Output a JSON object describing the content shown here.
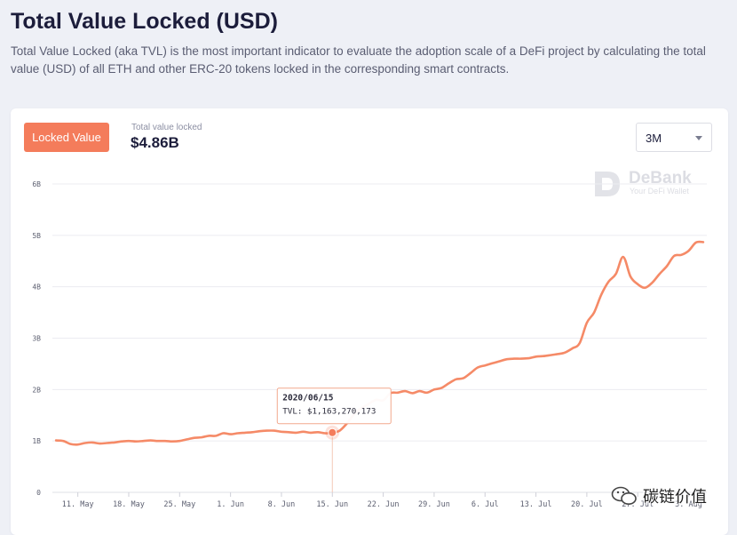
{
  "header": {
    "title": "Total Value Locked (USD)",
    "description": "Total Value Locked (aka TVL) is the most important indicator to evaluate the adoption scale of a DeFi project by calculating the total value (USD) of all ETH and other ERC-20 tokens locked in the corresponding smart contracts."
  },
  "toolbar": {
    "locked_button_label": "Locked Value",
    "tvl_label": "Total value locked",
    "tvl_value": "$4.86B",
    "period_selected": "3M"
  },
  "watermark": {
    "brand": "DeBank",
    "tagline": "Your DeFi Wallet"
  },
  "overlay": {
    "text": "碳链价值"
  },
  "colors": {
    "accent": "#f47c5b",
    "line": "#f58a67",
    "grid": "#ececf1",
    "axis_text": "#5c5f70"
  },
  "chart_data": {
    "type": "line",
    "title": "",
    "xlabel": "",
    "ylabel": "",
    "ylim": [
      0,
      6
    ],
    "y_unit": "B",
    "y_ticks": [
      0,
      1,
      2,
      3,
      4,
      5,
      6
    ],
    "y_tick_labels": [
      "0",
      "1B",
      "2B",
      "3B",
      "4B",
      "5B",
      "6B"
    ],
    "x_ticks": [
      {
        "date": "2020-05-11",
        "label": "11. May"
      },
      {
        "date": "2020-05-18",
        "label": "18. May"
      },
      {
        "date": "2020-05-25",
        "label": "25. May"
      },
      {
        "date": "2020-06-01",
        "label": "1. Jun"
      },
      {
        "date": "2020-06-08",
        "label": "8. Jun"
      },
      {
        "date": "2020-06-15",
        "label": "15. Jun"
      },
      {
        "date": "2020-06-22",
        "label": "22. Jun"
      },
      {
        "date": "2020-06-29",
        "label": "29. Jun"
      },
      {
        "date": "2020-07-06",
        "label": "6. Jul"
      },
      {
        "date": "2020-07-13",
        "label": "13. Jul"
      },
      {
        "date": "2020-07-20",
        "label": "20. Jul"
      },
      {
        "date": "2020-07-27",
        "label": "27. Jul"
      },
      {
        "date": "2020-08-03",
        "label": "3. Aug"
      }
    ],
    "series": [
      {
        "x": [
          "2020-05-08",
          "2020-05-09",
          "2020-05-10",
          "2020-05-11",
          "2020-05-12",
          "2020-05-13",
          "2020-05-14",
          "2020-05-15",
          "2020-05-16",
          "2020-05-17",
          "2020-05-18",
          "2020-05-19",
          "2020-05-20",
          "2020-05-21",
          "2020-05-22",
          "2020-05-23",
          "2020-05-24",
          "2020-05-25",
          "2020-05-26",
          "2020-05-27",
          "2020-05-28",
          "2020-05-29",
          "2020-05-30",
          "2020-05-31",
          "2020-06-01",
          "2020-06-02",
          "2020-06-03",
          "2020-06-04",
          "2020-06-05",
          "2020-06-06",
          "2020-06-07",
          "2020-06-08",
          "2020-06-09",
          "2020-06-10",
          "2020-06-11",
          "2020-06-12",
          "2020-06-13",
          "2020-06-14",
          "2020-06-15",
          "2020-06-16",
          "2020-06-17",
          "2020-06-18",
          "2020-06-19",
          "2020-06-20",
          "2020-06-21",
          "2020-06-22",
          "2020-06-23",
          "2020-06-24",
          "2020-06-25",
          "2020-06-26",
          "2020-06-27",
          "2020-06-28",
          "2020-06-29",
          "2020-06-30",
          "2020-07-01",
          "2020-07-02",
          "2020-07-03",
          "2020-07-04",
          "2020-07-05",
          "2020-07-06",
          "2020-07-07",
          "2020-07-08",
          "2020-07-09",
          "2020-07-10",
          "2020-07-11",
          "2020-07-12",
          "2020-07-13",
          "2020-07-14",
          "2020-07-15",
          "2020-07-16",
          "2020-07-17",
          "2020-07-18",
          "2020-07-19",
          "2020-07-20",
          "2020-07-21",
          "2020-07-22",
          "2020-07-23",
          "2020-07-24",
          "2020-07-25",
          "2020-07-26",
          "2020-07-27",
          "2020-07-28",
          "2020-07-29",
          "2020-07-30",
          "2020-07-31",
          "2020-08-01",
          "2020-08-02",
          "2020-08-03",
          "2020-08-04",
          "2020-08-05"
        ],
        "values": [
          1.01,
          1.0,
          0.94,
          0.93,
          0.96,
          0.97,
          0.95,
          0.96,
          0.97,
          0.99,
          1.0,
          0.99,
          1.0,
          1.01,
          1.0,
          1.0,
          0.99,
          1.0,
          1.03,
          1.06,
          1.07,
          1.1,
          1.1,
          1.15,
          1.13,
          1.15,
          1.16,
          1.17,
          1.19,
          1.2,
          1.2,
          1.18,
          1.17,
          1.16,
          1.18,
          1.16,
          1.17,
          1.15,
          1.16,
          1.2,
          1.34,
          1.52,
          1.64,
          1.72,
          1.8,
          1.79,
          1.93,
          1.94,
          1.97,
          1.93,
          1.97,
          1.94,
          2.0,
          2.03,
          2.12,
          2.2,
          2.22,
          2.32,
          2.43,
          2.47,
          2.51,
          2.55,
          2.59,
          2.6,
          2.6,
          2.61,
          2.64,
          2.65,
          2.67,
          2.69,
          2.72,
          2.8,
          2.9,
          3.3,
          3.5,
          3.85,
          4.1,
          4.25,
          4.58,
          4.2,
          4.05,
          3.98,
          4.08,
          4.25,
          4.4,
          4.6,
          4.62,
          4.7,
          4.86,
          4.87
        ]
      }
    ],
    "tooltip": {
      "date": "2020/06/15",
      "label": "TVL: $1,163,270,173",
      "x": "2020-06-15",
      "value": 1.163
    }
  }
}
